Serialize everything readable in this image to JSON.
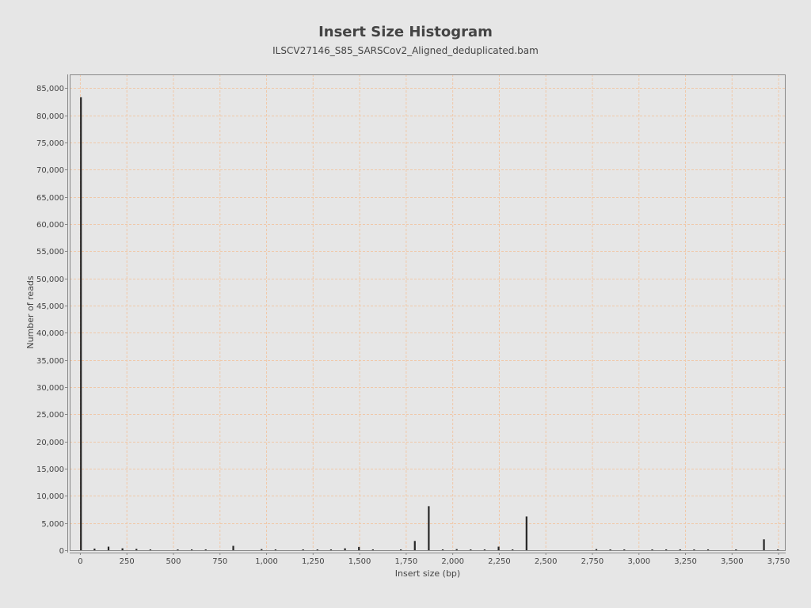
{
  "chart_data": {
    "type": "bar",
    "title": "Insert Size Histogram",
    "subtitle": "ILSCV27146_S85_SARSCov2_Aligned_deduplicated.bam",
    "xlabel": "Insert size (bp)",
    "ylabel": "Number of reads",
    "xlim": [
      -55,
      3790
    ],
    "ylim": [
      0,
      87500
    ],
    "xticks": [
      0,
      250,
      500,
      750,
      1000,
      1250,
      1500,
      1750,
      2000,
      2250,
      2500,
      2750,
      3000,
      3250,
      3500,
      3750
    ],
    "xtick_labels": [
      "0",
      "250",
      "500",
      "750",
      "1,000",
      "1,250",
      "1,500",
      "1,750",
      "2,000",
      "2,250",
      "2,500",
      "2,750",
      "3,000",
      "3,250",
      "3,500",
      "3,750"
    ],
    "yticks": [
      0,
      5000,
      10000,
      15000,
      20000,
      25000,
      30000,
      35000,
      40000,
      45000,
      50000,
      55000,
      60000,
      65000,
      70000,
      75000,
      80000,
      85000
    ],
    "ytick_labels": [
      "0",
      "5,000",
      "10,000",
      "15,000",
      "20,000",
      "25,000",
      "30,000",
      "35,000",
      "40,000",
      "45,000",
      "50,000",
      "55,000",
      "60,000",
      "65,000",
      "70,000",
      "75,000",
      "80,000",
      "85,000"
    ],
    "grid": true,
    "x": [
      5,
      78,
      153,
      228,
      303,
      378,
      525,
      600,
      675,
      823,
      975,
      1050,
      1198,
      1275,
      1348,
      1423,
      1498,
      1573,
      1723,
      1798,
      1873,
      1948,
      2023,
      2098,
      2173,
      2248,
      2323,
      2398,
      2773,
      2848,
      2923,
      3073,
      3148,
      3223,
      3298,
      3373,
      3523,
      3673,
      3748
    ],
    "values": [
      83300,
      300,
      650,
      350,
      250,
      60,
      60,
      60,
      60,
      800,
      200,
      60,
      60,
      60,
      60,
      350,
      600,
      60,
      60,
      1700,
      8100,
      60,
      200,
      60,
      60,
      650,
      60,
      6200,
      200,
      60,
      60,
      60,
      60,
      150,
      100,
      60,
      60,
      2000,
      60
    ],
    "bar_color": "#262626",
    "grid_color": "#f0c8a8"
  }
}
